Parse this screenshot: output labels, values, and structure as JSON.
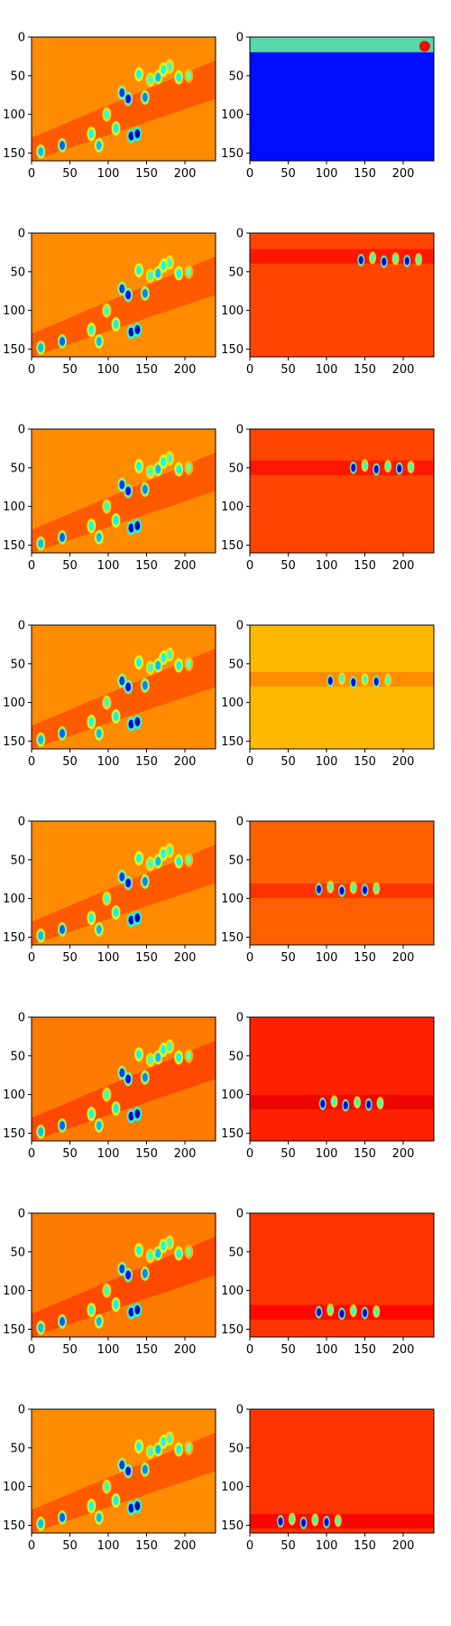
{
  "figure": {
    "layout": "8 rows x 2 columns of heatmap panels",
    "colormap": "jet",
    "colormap_stops": [
      "#00007f",
      "#0000ff",
      "#00ffff",
      "#7fff7f",
      "#ffff00",
      "#ff7f00",
      "#ff0000",
      "#7f0000"
    ]
  },
  "chart_data": {
    "type": "heatmap",
    "image_shape": [
      160,
      240
    ],
    "xlim": [
      0,
      240
    ],
    "ylim": [
      160,
      0
    ],
    "xticks": [
      0,
      50,
      100,
      150,
      200
    ],
    "yticks": [
      0,
      50,
      100,
      150
    ],
    "rows": [
      {
        "left": {
          "background_value": 0.7,
          "pattern": "diagonal band with blobs"
        },
        "right": {
          "background_value": 0.15,
          "band_center_y": 8,
          "band_value": 0.4,
          "hot_spot": [
            228,
            12
          ]
        }
      },
      {
        "left": {
          "background_value": 0.7
        },
        "right": {
          "background_value": 0.78,
          "band_center_y": 30,
          "blobs_near": [
            185,
            35
          ]
        }
      },
      {
        "left": {
          "background_value": 0.7
        },
        "right": {
          "background_value": 0.78,
          "band_center_y": 50,
          "blobs_near": [
            175,
            50
          ]
        }
      },
      {
        "left": {
          "background_value": 0.7
        },
        "right": {
          "background_value": 0.65,
          "band_center_y": 70,
          "blobs_near": [
            145,
            72
          ]
        }
      },
      {
        "left": {
          "background_value": 0.7
        },
        "right": {
          "background_value": 0.75,
          "band_center_y": 90,
          "blobs_near": [
            130,
            88
          ]
        }
      },
      {
        "left": {
          "background_value": 0.72
        },
        "right": {
          "background_value": 0.82,
          "band_center_y": 110,
          "blobs_near": [
            135,
            112
          ]
        }
      },
      {
        "left": {
          "background_value": 0.72
        },
        "right": {
          "background_value": 0.8,
          "band_center_y": 128,
          "blobs_near": [
            130,
            128
          ]
        }
      },
      {
        "left": {
          "background_value": 0.7
        },
        "right": {
          "background_value": 0.8,
          "band_center_y": 145,
          "blobs_near": [
            80,
            145
          ]
        }
      }
    ]
  }
}
